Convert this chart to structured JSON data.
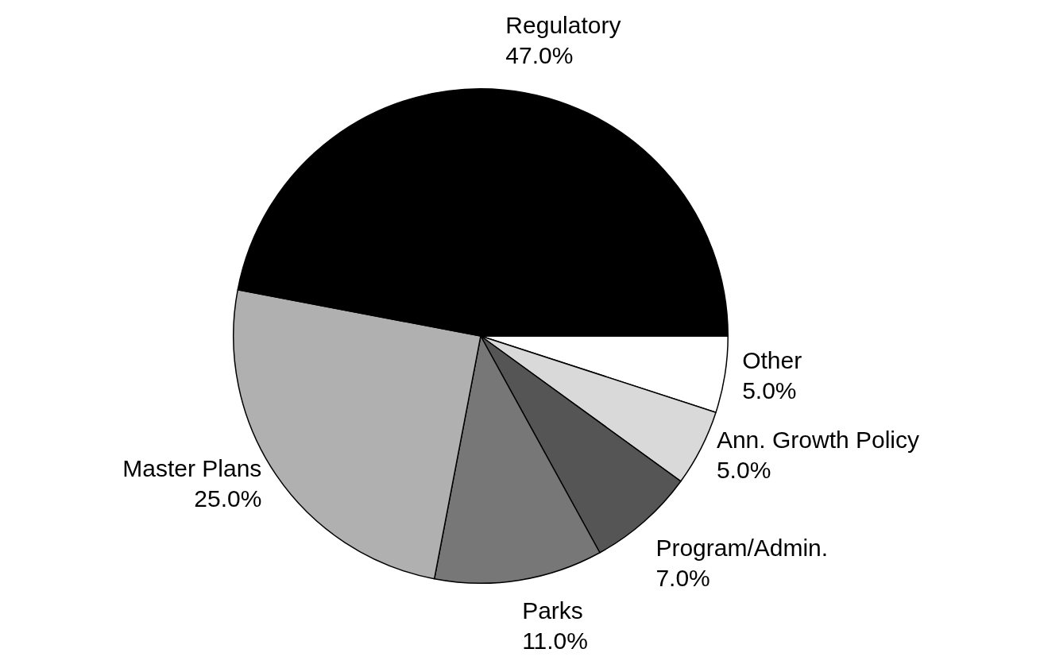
{
  "chart_data": {
    "type": "pie",
    "categories": [
      "Other",
      "Ann. Growth Policy",
      "Program/Admin.",
      "Parks",
      "Master Plans",
      "Regulatory"
    ],
    "values": [
      5,
      5,
      7,
      11,
      25,
      47
    ],
    "colors": [
      "#ffffff",
      "#d9d9d9",
      "#555555",
      "#777777",
      "#b0b0b0",
      "#000000"
    ],
    "value_labels": [
      "5.0%",
      "5.0%",
      "7.0%",
      "11.0%",
      "25.0%",
      "47.0%"
    ],
    "legend": false
  }
}
